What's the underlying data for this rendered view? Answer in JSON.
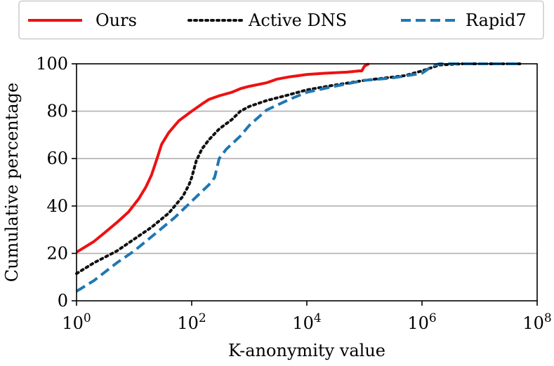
{
  "chart_data": {
    "type": "line",
    "title": "",
    "xlabel": "K-anonymity value",
    "ylabel": "Cumulative percentage",
    "xscale": "log",
    "xlim": [
      1,
      100000000
    ],
    "ylim": [
      0,
      100
    ],
    "grid": "horizontal",
    "legend_position": "top",
    "x_ticks": [
      {
        "value": 1,
        "base": "10",
        "exp": "0"
      },
      {
        "value": 100,
        "base": "10",
        "exp": "2"
      },
      {
        "value": 10000,
        "base": "10",
        "exp": "4"
      },
      {
        "value": 1000000,
        "base": "10",
        "exp": "6"
      },
      {
        "value": 100000000,
        "base": "10",
        "exp": "8"
      }
    ],
    "y_ticks": [
      "0",
      "20",
      "40",
      "60",
      "80",
      "100"
    ],
    "series": [
      {
        "name": "Ours",
        "color": "#ee1111",
        "style": "solid",
        "x": [
          1,
          2,
          3,
          5,
          8,
          12,
          16,
          20,
          25,
          30,
          40,
          60,
          100,
          150,
          200,
          300,
          500,
          700,
          1000,
          2000,
          3000,
          5000,
          10000,
          20000,
          50000,
          80000,
          90000,
          100000,
          120000
        ],
        "y": [
          20.5,
          25,
          28.5,
          33,
          37.5,
          43,
          48,
          53,
          60,
          66,
          71,
          76,
          80,
          83,
          85,
          86.5,
          88,
          89.5,
          90.5,
          92,
          93.5,
          94.5,
          95.5,
          96,
          96.5,
          97,
          97,
          99,
          100
        ]
      },
      {
        "name": "Active DNS",
        "color": "#111111",
        "style": "dotted",
        "x": [
          1,
          2,
          5,
          10,
          20,
          40,
          70,
          90,
          100,
          120,
          150,
          200,
          300,
          500,
          700,
          1000,
          2000,
          5000,
          10000,
          30000,
          100000,
          500000,
          1000000,
          2000000,
          5000000,
          20000000,
          50000000
        ],
        "y": [
          11.5,
          16,
          21,
          26,
          31,
          37,
          44,
          49,
          52,
          59,
          64,
          68,
          72.5,
          76.5,
          80,
          82,
          84.5,
          87,
          89,
          91,
          93,
          95,
          97,
          99.5,
          100,
          100,
          100
        ]
      },
      {
        "name": "Rapid7",
        "color": "#1f77b4",
        "style": "dashed",
        "x": [
          1,
          2,
          5,
          10,
          20,
          50,
          100,
          200,
          250,
          300,
          400,
          700,
          1000,
          2000,
          5000,
          10000,
          30000,
          100000,
          300000,
          1000000,
          1500000,
          2000000,
          5000000,
          20000000,
          50000000
        ],
        "y": [
          4,
          8.5,
          16,
          21,
          27,
          35,
          42,
          49,
          52,
          60,
          64,
          69.5,
          74,
          80.5,
          85,
          88,
          90.5,
          93,
          94,
          96,
          99,
          100,
          100,
          100,
          100
        ]
      }
    ]
  }
}
